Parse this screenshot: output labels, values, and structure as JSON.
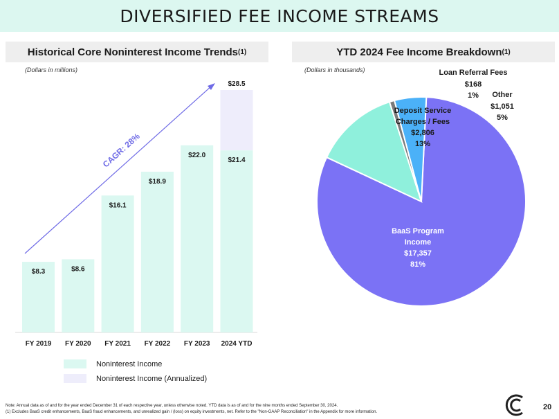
{
  "page_title": "DIVERSIFIED FEE INCOME STREAMS",
  "left_panel": {
    "title": "Historical Core Noninterest Income Trends",
    "sup": "(1)",
    "unit": "(Dollars in millions)"
  },
  "right_panel": {
    "title": "YTD 2024 Fee Income Breakdown",
    "sup": "(1)",
    "unit": "(Dollars in thousands)"
  },
  "colors": {
    "mint": "#dbf8f1",
    "lavender": "#eeedfb",
    "purple": "#7b72f5",
    "teal": "#8ff0dc",
    "blue": "#4bb1f8",
    "grey": "#7a7a7a",
    "arrow": "#6f6be6",
    "title_bg": "#dcf7f0"
  },
  "chart_data": [
    {
      "type": "bar",
      "title": "Historical Core Noninterest Income Trends",
      "categories": [
        "FY 2019",
        "FY 2020",
        "FY 2021",
        "FY 2022",
        "FY 2023",
        "2024 YTD"
      ],
      "series": [
        {
          "name": "Noninterest Income",
          "values": [
            8.3,
            8.6,
            16.1,
            18.9,
            22.0,
            21.4
          ],
          "labels": [
            "$8.3",
            "$8.6",
            "$16.1",
            "$18.9",
            "$22.0",
            "$21.4"
          ]
        },
        {
          "name": "Noninterest Income (Annualized)",
          "values": [
            null,
            null,
            null,
            null,
            null,
            28.5
          ],
          "labels": [
            "",
            "",
            "",
            "",
            "",
            "$28.5"
          ]
        }
      ],
      "annotation": "CAGR: 28%",
      "ylim": [
        0,
        32
      ],
      "xlabel": "",
      "ylabel": ""
    },
    {
      "type": "pie",
      "title": "YTD 2024 Fee Income Breakdown",
      "slices": [
        {
          "name": "BaaS Program Income",
          "value": 17357,
          "value_label": "$17,357",
          "pct": "81%"
        },
        {
          "name": "Deposit Service Charges / Fees",
          "value": 2806,
          "value_label": "$2,806",
          "pct": "13%"
        },
        {
          "name": "Loan Referral Fees",
          "value": 168,
          "value_label": "$168",
          "pct": "1%"
        },
        {
          "name": "Other",
          "value": 1051,
          "value_label": "$1,051",
          "pct": "5%"
        }
      ]
    }
  ],
  "legend": [
    {
      "label": "Noninterest Income"
    },
    {
      "label": "Noninterest Income (Annualized)"
    }
  ],
  "pie_labels": {
    "baas": [
      "BaaS Program",
      "Income"
    ],
    "deposit": [
      "Deposit Service",
      "Charges / Fees"
    ],
    "loan": "Loan Referral Fees",
    "other": "Other"
  },
  "footnotes": {
    "note": "Note:  Annual data as of and for the year ended December 31 of each respective year, unless otherwise noted. YTD data is as of and for the nine months ended September 30, 2024.",
    "one": "(1)     Excludes BaaS credit enhancements, BaaS fraud enhancements, and unrealized gain / (loss) on equity investments, net. Refer to the \"Non-GAAP Reconciliation\" in the Appendix for more information."
  },
  "page_number": "20"
}
